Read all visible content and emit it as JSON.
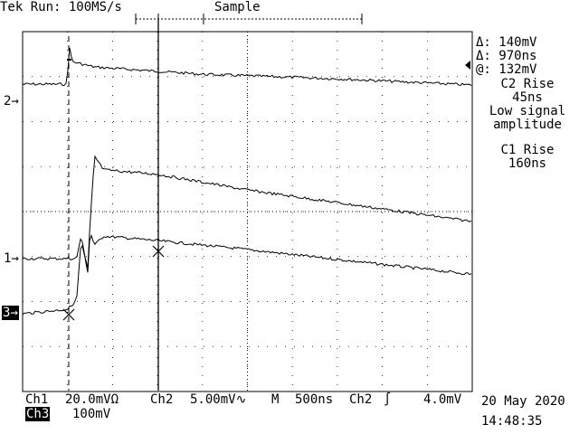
{
  "header": {
    "status": "Tek Run: 100MS/s",
    "mode": "Sample"
  },
  "cursor_readout": {
    "delta_v": "140mV",
    "delta_t": "970ns",
    "at_v": "132mV",
    "delta_symbol": "Δ:",
    "at_symbol": "@:"
  },
  "annotations": {
    "c2_label": "C2 Rise",
    "c2_value": "45ns",
    "note_line1": "Low signal",
    "note_line2": "amplitude",
    "c1_label": "C1 Rise",
    "c1_value": "160ns"
  },
  "channel_markers": {
    "ch2": "2",
    "ch1": "1",
    "ch3": "3"
  },
  "footer": {
    "ch1_label": "Ch1",
    "ch1_scale": "20.0mVΩ",
    "ch2_label": "Ch2",
    "ch2_scale": "5.00mV∿",
    "time_label": "M",
    "time_scale": "500ns",
    "trigger_source": "Ch2",
    "trigger_level": "4.0mV",
    "ch3_label": "Ch3",
    "ch3_scale": "100mV",
    "date": "20 May 2020",
    "time": "14:48:35"
  },
  "chart_data": {
    "type": "line",
    "grid": true,
    "divisions": {
      "x": 10,
      "y": 8
    },
    "xlabel": "",
    "ylabel": "",
    "series": [
      {
        "channel": "ch2",
        "points": [
          [
            0,
            0.4
          ],
          [
            1.0,
            0.4
          ],
          [
            1.02,
            1.4
          ],
          [
            1.1,
            0.9
          ],
          [
            1.6,
            0.78
          ],
          [
            4,
            0.62
          ],
          [
            7,
            0.52
          ],
          [
            10,
            0.38
          ]
        ]
      },
      {
        "channel": "ch1",
        "points": [
          [
            0,
            0.0
          ],
          [
            1.2,
            0.0
          ],
          [
            1.3,
            0.5
          ],
          [
            1.45,
            -0.3
          ],
          [
            1.5,
            0.6
          ],
          [
            1.6,
            0.3
          ],
          [
            1.8,
            0.5
          ],
          [
            3,
            0.4
          ],
          [
            5,
            0.2
          ],
          [
            10,
            -0.35
          ]
        ]
      },
      {
        "channel": "ch3",
        "points": [
          [
            0,
            0.0
          ],
          [
            1.0,
            0.1
          ],
          [
            1.2,
            0.3
          ],
          [
            1.3,
            1.6
          ],
          [
            1.45,
            1.0
          ],
          [
            1.5,
            2.0
          ],
          [
            1.6,
            3.5
          ],
          [
            1.8,
            3.2
          ],
          [
            3,
            3.1
          ],
          [
            5,
            2.75
          ],
          [
            10,
            2.05
          ]
        ]
      }
    ]
  }
}
